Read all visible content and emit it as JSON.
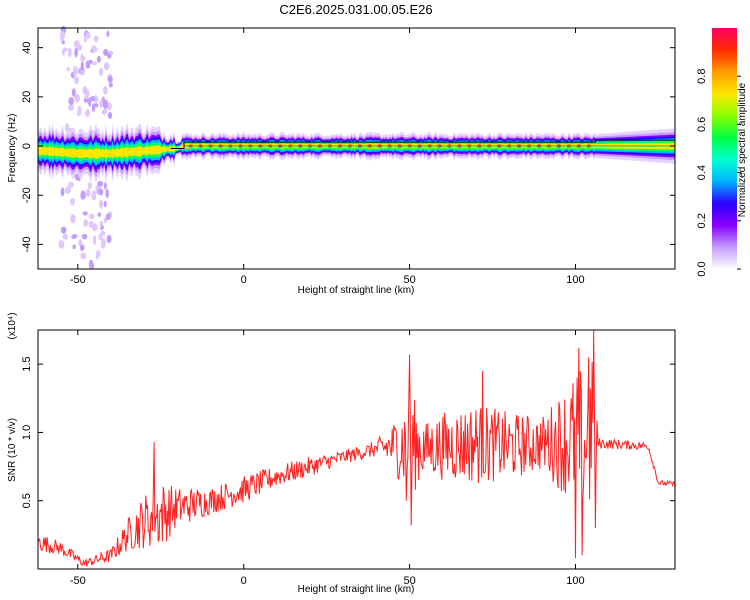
{
  "title": "C2E6.2025.031.00.05.E26",
  "chart_data": [
    {
      "type": "heatmap",
      "xlabel": "Height of straight line (km)",
      "ylabel": "Frequency (Hz)",
      "xlim": [
        -62,
        130
      ],
      "ylim": [
        -50,
        48
      ],
      "xticks": [
        "-50",
        "0",
        "50",
        "100"
      ],
      "yticks": [
        "-40",
        "-20",
        "0",
        "20",
        "40"
      ],
      "colorbar": {
        "label": "Normalized spectral amplitude",
        "range": [
          0,
          1
        ],
        "ticks": [
          "0.0",
          "0.2",
          "0.4",
          "0.6",
          "0.8"
        ],
        "colors": [
          "#ffffff",
          "#c49cff",
          "#8800ff",
          "#2a00ff",
          "#00b4ff",
          "#00ffd0",
          "#00ff40",
          "#8cff00",
          "#ffe600",
          "#ff9a00",
          "#ff2a00",
          "#ff0066"
        ]
      },
      "band": {
        "center_hz": [
          {
            "x": -60,
            "y": -2
          },
          {
            "x": -50,
            "y": -3
          },
          {
            "x": -40,
            "y": -3
          },
          {
            "x": -30,
            "y": -2
          },
          {
            "x": -20,
            "y": -1
          },
          {
            "x": -18,
            "y": 0
          },
          {
            "x": 0,
            "y": 0
          },
          {
            "x": 50,
            "y": 0
          },
          {
            "x": 100,
            "y": 0
          },
          {
            "x": 130,
            "y": 0
          }
        ],
        "half_width_hz": [
          {
            "x": -60,
            "y": 4
          },
          {
            "x": -30,
            "y": 4
          },
          {
            "x": -18,
            "y": 2
          },
          {
            "x": 0,
            "y": 2
          },
          {
            "x": 105,
            "y": 2
          },
          {
            "x": 106,
            "y": 2
          },
          {
            "x": 130,
            "y": 3
          }
        ]
      },
      "scatter_region": {
        "x": [
          -55,
          -40
        ],
        "y": [
          -50,
          48
        ]
      }
    },
    {
      "type": "line",
      "xlabel": "Height of straight line (km)",
      "ylabel": "SNR (10 * v/v)",
      "yscale_note": "(x10⁴)",
      "xlim": [
        -62,
        130
      ],
      "ylim": [
        0,
        1.75
      ],
      "xticks": [
        "-50",
        "0",
        "50",
        "100"
      ],
      "yticks": [
        "0.5",
        "1.0",
        "1.5"
      ],
      "series": [
        {
          "color": "#ff2020",
          "envelope": [
            {
              "x": -62,
              "mean": 0.2,
              "amp": 0.07
            },
            {
              "x": -55,
              "mean": 0.15,
              "amp": 0.05
            },
            {
              "x": -48,
              "mean": 0.04,
              "amp": 0.03
            },
            {
              "x": -40,
              "mean": 0.1,
              "amp": 0.05
            },
            {
              "x": -35,
              "mean": 0.25,
              "amp": 0.12
            },
            {
              "x": -30,
              "mean": 0.35,
              "amp": 0.2
            },
            {
              "x": -25,
              "mean": 0.4,
              "amp": 0.25
            },
            {
              "x": -20,
              "mean": 0.45,
              "amp": 0.15
            },
            {
              "x": -10,
              "mean": 0.5,
              "amp": 0.1
            },
            {
              "x": 0,
              "mean": 0.58,
              "amp": 0.1
            },
            {
              "x": 10,
              "mean": 0.68,
              "amp": 0.08
            },
            {
              "x": 20,
              "mean": 0.75,
              "amp": 0.07
            },
            {
              "x": 30,
              "mean": 0.82,
              "amp": 0.05
            },
            {
              "x": 40,
              "mean": 0.88,
              "amp": 0.06
            },
            {
              "x": 45,
              "mean": 0.9,
              "amp": 0.18
            },
            {
              "x": 50,
              "mean": 0.92,
              "amp": 0.4
            },
            {
              "x": 55,
              "mean": 0.88,
              "amp": 0.2
            },
            {
              "x": 60,
              "mean": 0.9,
              "amp": 0.25
            },
            {
              "x": 70,
              "mean": 0.92,
              "amp": 0.3
            },
            {
              "x": 80,
              "mean": 0.9,
              "amp": 0.25
            },
            {
              "x": 90,
              "mean": 0.92,
              "amp": 0.2
            },
            {
              "x": 100,
              "mean": 0.95,
              "amp": 0.5
            },
            {
              "x": 105,
              "mean": 0.95,
              "amp": 0.6
            },
            {
              "x": 107,
              "mean": 0.92,
              "amp": 0.04
            },
            {
              "x": 122,
              "mean": 0.9,
              "amp": 0.03
            },
            {
              "x": 125,
              "mean": 0.63,
              "amp": 0.02
            },
            {
              "x": 130,
              "mean": 0.62,
              "amp": 0.02
            }
          ],
          "peaks": [
            {
              "x": 50,
              "y": 1.57
            },
            {
              "x": 50.5,
              "y": 0.32
            },
            {
              "x": 100,
              "y": 0.08
            },
            {
              "x": 101,
              "y": 1.62
            },
            {
              "x": 102,
              "y": 0.1
            },
            {
              "x": 104,
              "y": 1.55
            },
            {
              "x": 105.5,
              "y": 1.75
            },
            {
              "x": 106,
              "y": 0.3
            },
            {
              "x": -27,
              "y": 0.93
            },
            {
              "x": 72,
              "y": 1.45
            },
            {
              "x": 49,
              "y": 0.5
            }
          ]
        }
      ]
    }
  ]
}
